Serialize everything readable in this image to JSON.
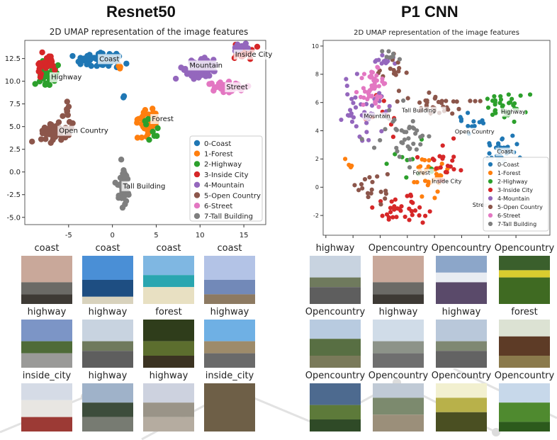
{
  "panels": [
    {
      "heading": "Resnet50",
      "chart_data": {
        "type": "scatter",
        "title": "2D UMAP representation of the image features",
        "xlabel": "",
        "ylabel": "",
        "xlim": [
          -10,
          17.5
        ],
        "ylim": [
          -5.8,
          14.5
        ],
        "xticks": [
          -5,
          0,
          5,
          10,
          15
        ],
        "yticks": [
          -5.0,
          -2.5,
          0.0,
          2.5,
          5.0,
          7.5,
          10.0,
          12.5
        ],
        "xtick_labels": [
          "-5",
          "0",
          "5",
          "10",
          "15"
        ],
        "ytick_labels": [
          "-5.0",
          "-2.5",
          "0.0",
          "2.5",
          "5.0",
          "7.5",
          "10.0",
          "12.5"
        ],
        "legend_position": "lower-right",
        "series": [
          {
            "name": "0-Coast",
            "color": "#1f77b4",
            "cluster_label": "Coast",
            "label_at": [
              -1.5,
              12.2
            ],
            "clusters": [
              {
                "cx": -1.5,
                "cy": 12.4,
                "sx": 2.2,
                "sy": 0.6,
                "n": 70
              },
              {
                "cx": 1.3,
                "cy": 8.2,
                "sx": 0.15,
                "sy": 0.15,
                "n": 2
              }
            ]
          },
          {
            "name": "1-Forest",
            "color": "#ff7f0e",
            "cluster_label": "Forest",
            "label_at": [
              4.5,
              5.6
            ],
            "clusters": [
              {
                "cx": 4.2,
                "cy": 5.5,
                "sx": 1.0,
                "sy": 1.3,
                "n": 45
              },
              {
                "cx": 0.8,
                "cy": 11.5,
                "sx": 0.3,
                "sy": 0.2,
                "n": 4
              }
            ]
          },
          {
            "name": "2-Highway",
            "color": "#2ca02c",
            "cluster_label": "Highway",
            "label_at": [
              -7,
              10.2
            ],
            "clusters": [
              {
                "cx": -7.5,
                "cy": 10.8,
                "sx": 1.0,
                "sy": 1.0,
                "n": 40
              },
              {
                "cx": 4.3,
                "cy": 5.0,
                "sx": 0.8,
                "sy": 1.0,
                "n": 8
              }
            ]
          },
          {
            "name": "3-Inside City",
            "color": "#d62728",
            "cluster_label": "Inside City",
            "label_at": [
              14,
              12.7
            ],
            "clusters": [
              {
                "cx": 14.8,
                "cy": 13.2,
                "sx": 1.0,
                "sy": 0.6,
                "n": 22
              },
              {
                "cx": -7.3,
                "cy": 11.8,
                "sx": 1.0,
                "sy": 0.8,
                "n": 25
              }
            ]
          },
          {
            "name": "4-Mountain",
            "color": "#9467bd",
            "cluster_label": "Mountain",
            "label_at": [
              8.8,
              11.5
            ],
            "clusters": [
              {
                "cx": 10,
                "cy": 11.3,
                "sx": 1.8,
                "sy": 0.9,
                "n": 75
              },
              {
                "cx": 14.7,
                "cy": 13.7,
                "sx": 0.9,
                "sy": 0.3,
                "n": 15
              }
            ]
          },
          {
            "name": "5-Open Country",
            "color": "#8c564b",
            "cluster_label": "Open Country",
            "label_at": [
              -6.1,
              4.3
            ],
            "clusters": [
              {
                "cx": -6.5,
                "cy": 4.4,
                "sx": 1.5,
                "sy": 1.0,
                "n": 60
              },
              {
                "cx": -5.1,
                "cy": 7.0,
                "sx": 0.2,
                "sy": 0.6,
                "n": 5
              }
            ]
          },
          {
            "name": "6-Street",
            "color": "#e377c2",
            "cluster_label": "Street",
            "label_at": [
              13,
              9.1
            ],
            "clusters": [
              {
                "cx": 13,
                "cy": 9.3,
                "sx": 1.6,
                "sy": 0.6,
                "n": 55
              }
            ]
          },
          {
            "name": "7-Tall Building",
            "color": "#7f7f7f",
            "cluster_label": "Tall Building",
            "label_at": [
              1.2,
              -1.8
            ],
            "clusters": [
              {
                "cx": 1.3,
                "cy": -1.6,
                "sx": 0.5,
                "sy": 1.7,
                "n": 45
              }
            ]
          }
        ]
      },
      "samples": [
        {
          "label": "coast",
          "scene": "coast"
        },
        {
          "label": "coast",
          "scene": "sea"
        },
        {
          "label": "coast",
          "scene": "beach"
        },
        {
          "label": "coast",
          "scene": "coast2"
        },
        {
          "label": "highway",
          "scene": "highway"
        },
        {
          "label": "highway",
          "scene": "road"
        },
        {
          "label": "forest",
          "scene": "forest"
        },
        {
          "label": "highway",
          "scene": "city"
        },
        {
          "label": "inside_city",
          "scene": "house"
        },
        {
          "label": "highway",
          "scene": "valley"
        },
        {
          "label": "highway",
          "scene": "road2"
        },
        {
          "label": "inside_city",
          "scene": "building"
        }
      ]
    },
    {
      "heading": "P1 CNN",
      "chart_data": {
        "type": "scatter",
        "title": "2D UMAP representation of the image features",
        "xlabel": "",
        "ylabel": "",
        "xlim": [
          -4.2,
          12.5
        ],
        "ylim": [
          -3.4,
          10.4
        ],
        "xticks": [
          -4,
          -2,
          0,
          2,
          4,
          6,
          8,
          10
        ],
        "yticks": [
          -2,
          0,
          2,
          4,
          6,
          8,
          10
        ],
        "xtick_labels": [
          "-4",
          "-2",
          "0",
          "2",
          "4",
          "6",
          "8",
          "10"
        ],
        "ytick_labels": [
          "-2",
          "0",
          "2",
          "4",
          "6",
          "8",
          "10"
        ],
        "legend_position": "lower-right",
        "series": [
          {
            "name": "0-Coast",
            "color": "#1f77b4",
            "cluster_label": "Coast",
            "label_at": [
              8.6,
              2.4
            ],
            "clusters": [
              {
                "cx": 9,
                "cy": 2.5,
                "sx": 1.3,
                "sy": 0.9,
                "n": 35
              },
              {
                "cx": 6.5,
                "cy": 4.5,
                "sx": 0.8,
                "sy": 1.0,
                "n": 12
              }
            ]
          },
          {
            "name": "1-Forest",
            "color": "#ff7f0e",
            "cluster_label": "Forest",
            "label_at": [
              2.4,
              0.9
            ],
            "clusters": [
              {
                "cx": 3.8,
                "cy": 0.8,
                "sx": 1.3,
                "sy": 1.2,
                "n": 30
              },
              {
                "cx": -2.2,
                "cy": 1.8,
                "sx": 0.4,
                "sy": 0.6,
                "n": 5
              }
            ]
          },
          {
            "name": "2-Highway",
            "color": "#2ca02c",
            "cluster_label": "Highway",
            "label_at": [
              8.9,
              5.2
            ],
            "clusters": [
              {
                "cx": 9,
                "cy": 5.8,
                "sx": 1.5,
                "sy": 0.8,
                "n": 35
              },
              {
                "cx": 2.5,
                "cy": 2,
                "sx": 1.5,
                "sy": 1.5,
                "n": 10
              }
            ]
          },
          {
            "name": "3-Inside City",
            "color": "#d62728",
            "cluster_label": "Inside City",
            "label_at": [
              3.8,
              0.3
            ],
            "clusters": [
              {
                "cx": 1.5,
                "cy": -1.5,
                "sx": 1.5,
                "sy": 1.0,
                "n": 35
              },
              {
                "cx": 4.5,
                "cy": 1.5,
                "sx": 1.3,
                "sy": 1.3,
                "n": 20
              },
              {
                "cx": 0,
                "cy": 5,
                "sx": 1.2,
                "sy": 1.5,
                "n": 10
              }
            ]
          },
          {
            "name": "4-Mountain",
            "color": "#9467bd",
            "cluster_label": "Mountain",
            "label_at": [
              -1.2,
              4.9
            ],
            "clusters": [
              {
                "cx": -1.2,
                "cy": 5.5,
                "sx": 1.2,
                "sy": 1.5,
                "n": 45
              },
              {
                "cx": 0.2,
                "cy": 9.0,
                "sx": 0.8,
                "sy": 0.5,
                "n": 12
              }
            ]
          },
          {
            "name": "5-Open Country",
            "color": "#8c564b",
            "cluster_label": "Open Country",
            "label_at": [
              5.5,
              3.8
            ],
            "clusters": [
              {
                "cx": 4,
                "cy": 5.8,
                "sx": 2.5,
                "sy": 0.6,
                "n": 35
              },
              {
                "cx": 1,
                "cy": 8.5,
                "sx": 0.8,
                "sy": 1.0,
                "n": 15
              },
              {
                "cx": -0.5,
                "cy": -0.2,
                "sx": 1.4,
                "sy": 1.2,
                "n": 18
              }
            ]
          },
          {
            "name": "6-Street",
            "color": "#e377c2",
            "cluster_label": "Street",
            "label_at": [
              6.8,
              -1.4
            ],
            "clusters": [
              {
                "cx": -0.6,
                "cy": 7.2,
                "sx": 0.8,
                "sy": 1.3,
                "n": 45
              }
            ]
          },
          {
            "name": "7-Tall Building",
            "color": "#7f7f7f",
            "cluster_label": "Tall Building",
            "label_at": [
              1.6,
              5.3
            ],
            "clusters": [
              {
                "cx": 1.8,
                "cy": 3.8,
                "sx": 1.8,
                "sy": 1.6,
                "n": 40
              },
              {
                "cx": 0.5,
                "cy": 9.3,
                "sx": 0.8,
                "sy": 0.4,
                "n": 8
              }
            ]
          }
        ]
      },
      "samples": [
        {
          "label": "highway",
          "scene": "road"
        },
        {
          "label": "Opencountry",
          "scene": "coast"
        },
        {
          "label": "Opencountry",
          "scene": "mountain"
        },
        {
          "label": "Opencountry",
          "scene": "field"
        },
        {
          "label": "Opencountry",
          "scene": "hills"
        },
        {
          "label": "highway",
          "scene": "highway2"
        },
        {
          "label": "highway",
          "scene": "highway3"
        },
        {
          "label": "forest",
          "scene": "tree"
        },
        {
          "label": "Opencountry",
          "scene": "plain"
        },
        {
          "label": "Opencountry",
          "scene": "village"
        },
        {
          "label": "Opencountry",
          "scene": "pond"
        },
        {
          "label": "Opencountry",
          "scene": "green"
        }
      ]
    }
  ]
}
